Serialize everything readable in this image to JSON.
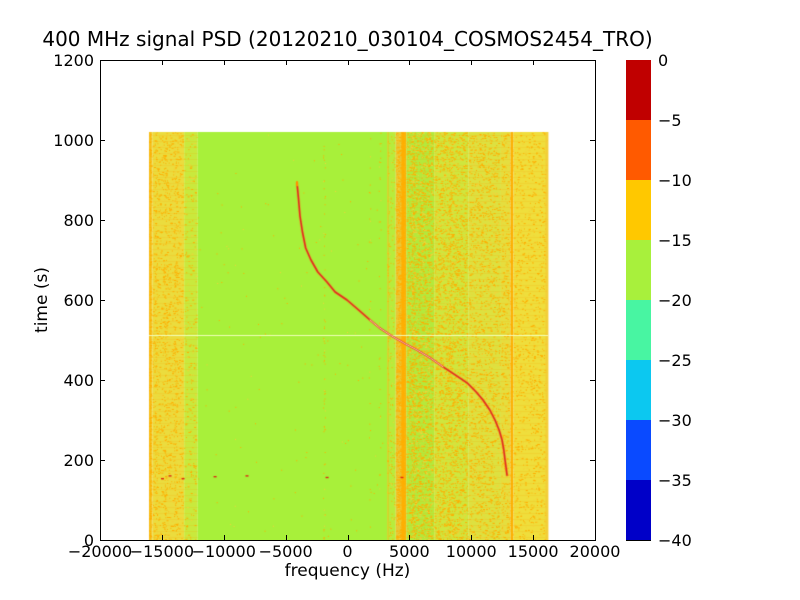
{
  "title": "400 MHz signal PSD (20120210_030104_COSMOS2454_TRO)",
  "axes": {
    "xlabel": "frequency (Hz)",
    "ylabel": "time (s)",
    "x_ticks": [
      {
        "v": -20000,
        "label": "−20000"
      },
      {
        "v": -15000,
        "label": "−15000"
      },
      {
        "v": -10000,
        "label": "−10000"
      },
      {
        "v": -5000,
        "label": "−5000"
      },
      {
        "v": 0,
        "label": "0"
      },
      {
        "v": 5000,
        "label": "5000"
      },
      {
        "v": 10000,
        "label": "10000"
      },
      {
        "v": 15000,
        "label": "15000"
      },
      {
        "v": 20000,
        "label": "20000"
      }
    ],
    "y_ticks": [
      {
        "v": 0,
        "label": "0"
      },
      {
        "v": 200,
        "label": "200"
      },
      {
        "v": 400,
        "label": "400"
      },
      {
        "v": 600,
        "label": "600"
      },
      {
        "v": 800,
        "label": "800"
      },
      {
        "v": 1000,
        "label": "1000"
      },
      {
        "v": 1200,
        "label": "1200"
      }
    ]
  },
  "colorbar": {
    "tick_labels": [
      "0",
      "−5",
      "−10",
      "−15",
      "−20",
      "−25",
      "−30",
      "−35",
      "−40"
    ],
    "segment_colors_top_to_bottom": [
      "#C00000",
      "#FF5A00",
      "#FFC800",
      "#A8F03C",
      "#48F5A2",
      "#0CC8F0",
      "#0A4AFF",
      "#0000C8"
    ]
  },
  "chart_data": {
    "type": "heatmap",
    "title": "400 MHz signal PSD (20120210_030104_COSMOS2454_TRO)",
    "xlabel": "frequency (Hz)",
    "ylabel": "time (s)",
    "xlim": [
      -20000,
      20000
    ],
    "ylim": [
      0,
      1200
    ],
    "colorbar_range_db": [
      0,
      -40
    ],
    "colorbar_step_db": 5,
    "data_extent": {
      "freq_hz": [
        -16040,
        16200
      ],
      "time_s": [
        0,
        1020
      ]
    },
    "background_level_db": -17,
    "bands": [
      {
        "f": [
          -16040,
          -15750
        ],
        "base": "#F0CE38",
        "speckle": 0.5,
        "rows": true
      },
      {
        "f": [
          -15750,
          -13200
        ],
        "base": "#EBDC3E",
        "speckle": 0.22,
        "rows": true
      },
      {
        "f": [
          -13200,
          -12100
        ],
        "base": "#C9E93D",
        "speckle": 0.1,
        "rows": true
      },
      {
        "f": [
          -12100,
          3200
        ],
        "base": "#A8F03A",
        "speckle": 0.003,
        "rows": false
      },
      {
        "f": [
          3200,
          3900
        ],
        "base": "#B8EC3C",
        "speckle": 0.15,
        "rows": false
      },
      {
        "f": [
          3900,
          4750
        ],
        "base": "#E8C736",
        "speckle": 0.75,
        "rows": true
      },
      {
        "f": [
          4750,
          7000
        ],
        "base": "#B4E93C",
        "speckle": 0.45,
        "rows": true
      },
      {
        "f": [
          7000,
          9800
        ],
        "base": "#CFE63E",
        "speckle": 0.42,
        "rows": true
      },
      {
        "f": [
          9800,
          12400
        ],
        "base": "#DDE140",
        "speckle": 0.3,
        "rows": true
      },
      {
        "f": [
          12400,
          13150
        ],
        "base": "#E5DE3F",
        "speckle": 0.25,
        "rows": true
      },
      {
        "f": [
          13150,
          13420
        ],
        "base": "#F0C838",
        "speckle": 0.55,
        "rows": true
      },
      {
        "f": [
          13420,
          16200
        ],
        "base": "#EFDE3C",
        "speckle": 0.18,
        "rows": true
      }
    ],
    "speckle_colors": [
      "#FFAE00",
      "#F4D23A"
    ],
    "speckle_columns": [
      {
        "f": -15500,
        "w": 3,
        "d": 0.45
      },
      {
        "f": -14700,
        "w": 3,
        "d": 0.4
      },
      {
        "f": -13900,
        "w": 3,
        "d": 0.4
      },
      {
        "f": -1900,
        "w": 2,
        "d": 0.18
      },
      {
        "f": 1800,
        "w": 2,
        "d": 0.07
      },
      {
        "f": 2600,
        "w": 2,
        "d": 0.08
      },
      {
        "f": 5300,
        "w": 3,
        "d": 0.55
      },
      {
        "f": 8300,
        "w": 3,
        "d": 0.45
      }
    ],
    "vlines": [
      {
        "f": -15950,
        "w": 2,
        "color": "#FFAE00",
        "alpha": 0.55
      },
      {
        "f": 3270,
        "w": 1,
        "color": "#FFAE00",
        "alpha": 0.65
      },
      {
        "f": 4480,
        "w": 3,
        "color": "#FFAE00",
        "alpha": 0.95
      },
      {
        "f": 4660,
        "w": 2,
        "color": "#FFAE00",
        "alpha": 0.8
      },
      {
        "f": 13290,
        "w": 2,
        "color": "#FFAE00",
        "alpha": 0.9
      },
      {
        "f": 16120,
        "w": 3,
        "color": "#F2CC38",
        "alpha": 0.85
      }
    ],
    "pale_hline_time_s": 512,
    "pale_hline_color": "rgba(242,255,190,0.95)",
    "doppler_track_t_f": [
      [
        892,
        -4080
      ],
      [
        850,
        -3950
      ],
      [
        810,
        -3840
      ],
      [
        770,
        -3640
      ],
      [
        730,
        -3380
      ],
      [
        700,
        -2950
      ],
      [
        670,
        -2400
      ],
      [
        645,
        -1660
      ],
      [
        620,
        -1000
      ],
      [
        600,
        -40
      ],
      [
        575,
        900
      ],
      [
        550,
        1820
      ],
      [
        530,
        2600
      ],
      [
        508,
        3680
      ],
      [
        490,
        4700
      ],
      [
        475,
        5620
      ],
      [
        455,
        6700
      ],
      [
        433,
        7720
      ],
      [
        413,
        8700
      ],
      [
        393,
        9660
      ],
      [
        370,
        10400
      ],
      [
        350,
        10950
      ],
      [
        325,
        11500
      ],
      [
        300,
        11920
      ],
      [
        275,
        12250
      ],
      [
        250,
        12490
      ],
      [
        225,
        12630
      ],
      [
        200,
        12730
      ],
      [
        180,
        12820
      ],
      [
        162,
        12890
      ]
    ],
    "track_colors": {
      "glow": "rgba(255,130,30,0.45)",
      "main": "#DF3020",
      "core": "rgba(255,240,224,0.9)",
      "tip": "#FF9200"
    },
    "track_core_t_range": [
      420,
      565
    ],
    "bottom_specks_t_f": [
      [
        155,
        -14950
      ],
      [
        162,
        -14340
      ],
      [
        155,
        -13290
      ],
      [
        160,
        -10700
      ],
      [
        162,
        -8120
      ],
      [
        158,
        -1650
      ],
      [
        158,
        4400
      ]
    ],
    "speck_color": "#DC2814"
  }
}
